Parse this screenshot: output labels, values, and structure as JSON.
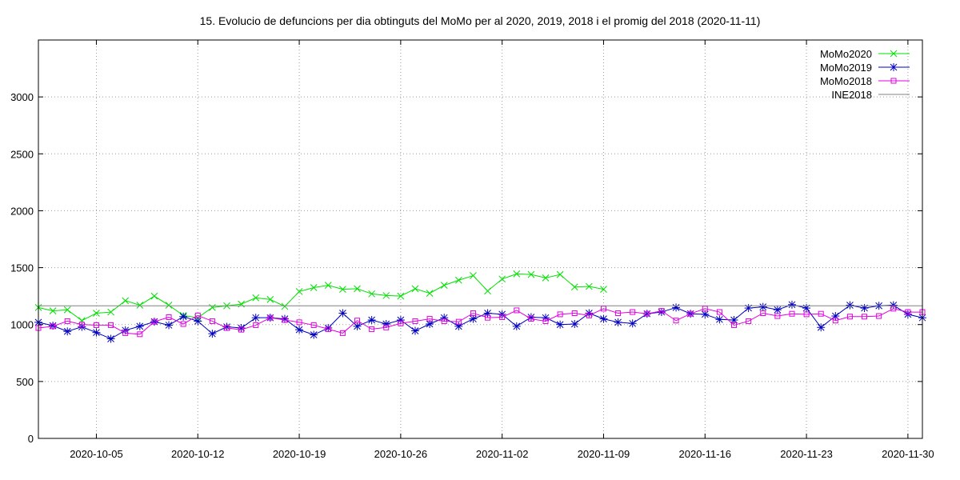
{
  "chart_data": {
    "type": "line",
    "title": "15. Evolucio de defuncions per dia obtinguts del MoMo per al 2020, 2019, 2018 i el promig del 2018 (2020-11-11)",
    "xlabel": "",
    "ylabel": "",
    "x_start": "2020-10-01",
    "xlim": [
      "2020-10-01",
      "2020-12-01"
    ],
    "ylim": [
      0,
      3500
    ],
    "x_tick_labels": [
      "2020-10-05",
      "2020-10-12",
      "2020-10-19",
      "2020-10-26",
      "2020-11-02",
      "2020-11-09",
      "2020-11-16",
      "2020-11-23",
      "2020-11-30"
    ],
    "y_ticks": [
      0,
      500,
      1000,
      1500,
      2000,
      2500,
      3000
    ],
    "grid": true,
    "legend_position": "top-right",
    "series": [
      {
        "name": "MoMo2020",
        "color": "#00e000",
        "marker": "x",
        "values": [
          1150,
          1120,
          1130,
          1035,
          1100,
          1110,
          1210,
          1170,
          1250,
          1170,
          1080,
          1060,
          1150,
          1165,
          1180,
          1235,
          1220,
          1160,
          1290,
          1325,
          1345,
          1310,
          1315,
          1270,
          1255,
          1250,
          1315,
          1275,
          1345,
          1390,
          1430,
          1295,
          1400,
          1445,
          1440,
          1410,
          1440,
          1330,
          1335,
          1310
        ]
      },
      {
        "name": "MoMo2019",
        "color": "#0000c0",
        "marker": "*",
        "values": [
          1020,
          990,
          940,
          980,
          930,
          875,
          950,
          985,
          1025,
          995,
          1070,
          1030,
          920,
          980,
          970,
          1060,
          1060,
          1050,
          955,
          910,
          970,
          1100,
          985,
          1040,
          1005,
          1040,
          945,
          1005,
          1060,
          985,
          1050,
          1100,
          1090,
          985,
          1065,
          1060,
          1000,
          1005,
          1100,
          1050,
          1020,
          1010,
          1095,
          1110,
          1150,
          1095,
          1090,
          1045,
          1040,
          1145,
          1155,
          1130,
          1175,
          1145,
          975,
          1075,
          1170,
          1145,
          1165,
          1170,
          1090,
          1060
        ]
      },
      {
        "name": "MoMo2018",
        "color": "#e000e0",
        "marker": "square",
        "values": [
          970,
          985,
          1030,
          1000,
          995,
          995,
          925,
          915,
          1025,
          1065,
          1005,
          1080,
          1030,
          970,
          955,
          995,
          1060,
          1040,
          1020,
          995,
          960,
          925,
          1035,
          960,
          975,
          1010,
          1030,
          1050,
          1030,
          1025,
          1100,
          1060,
          1065,
          1125,
          1050,
          1030,
          1090,
          1100,
          1080,
          1140,
          1100,
          1110,
          1095,
          1120,
          1035,
          1095,
          1140,
          1110,
          995,
          1030,
          1100,
          1075,
          1095,
          1090,
          1095,
          1035,
          1070,
          1070,
          1075,
          1140,
          1110,
          1110
        ]
      },
      {
        "name": "INE2018",
        "color": "#808080",
        "marker": "none",
        "values": [
          1165,
          1165
        ]
      }
    ]
  }
}
